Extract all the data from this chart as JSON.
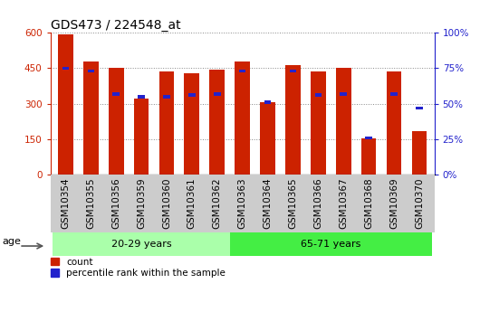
{
  "title": "GDS473 / 224548_at",
  "samples": [
    "GSM10354",
    "GSM10355",
    "GSM10356",
    "GSM10359",
    "GSM10360",
    "GSM10361",
    "GSM10362",
    "GSM10363",
    "GSM10364",
    "GSM10365",
    "GSM10366",
    "GSM10367",
    "GSM10368",
    "GSM10369",
    "GSM10370"
  ],
  "count_values": [
    595,
    480,
    450,
    323,
    435,
    430,
    445,
    478,
    308,
    465,
    438,
    452,
    152,
    438,
    185
  ],
  "percentile_values": [
    75,
    73,
    57,
    55,
    55,
    56,
    57,
    73,
    51,
    73,
    56,
    57,
    26,
    57,
    47
  ],
  "group1_label": "20-29 years",
  "group2_label": "65-71 years",
  "group1_count": 7,
  "group2_count": 8,
  "ylim_left": [
    0,
    600
  ],
  "ylim_right": [
    0,
    100
  ],
  "yticks_left": [
    0,
    150,
    300,
    450,
    600
  ],
  "yticks_right": [
    0,
    25,
    50,
    75,
    100
  ],
  "bar_color_red": "#CC2200",
  "bar_color_blue": "#2222CC",
  "group1_bg": "#AAFFAA",
  "group2_bg": "#44EE44",
  "xtick_bg": "#CCCCCC",
  "age_label": "age",
  "legend_count": "count",
  "legend_percentile": "percentile rank within the sample",
  "bar_width": 0.6,
  "title_fontsize": 10,
  "tick_fontsize": 7.5,
  "figsize": [
    5.3,
    3.45
  ],
  "dpi": 100
}
